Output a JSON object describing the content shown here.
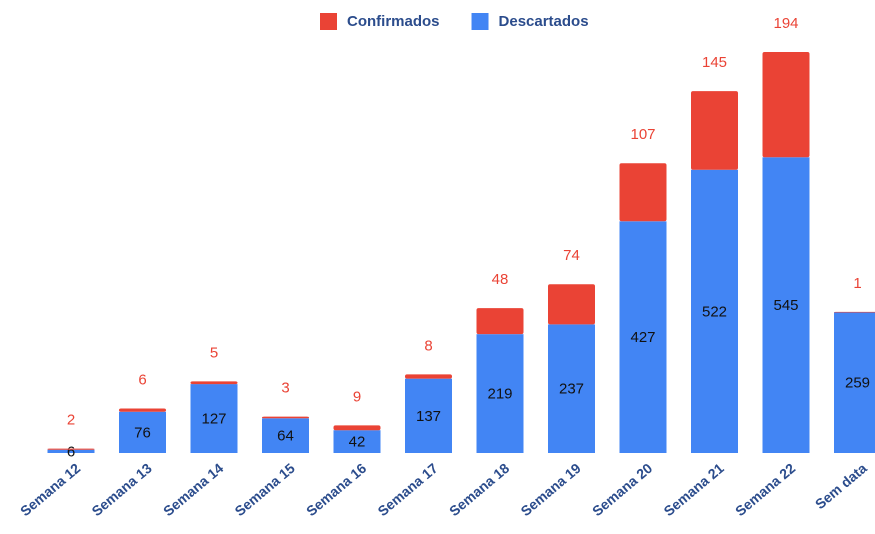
{
  "chart_data": {
    "type": "stacked-bar",
    "categories": [
      "Semana 12",
      "Semana 13",
      "Semana 14",
      "Semana 15",
      "Semana 16",
      "Semana 17",
      "Semana 18",
      "Semana 19",
      "Semana 20",
      "Semana 21",
      "Semana 22",
      "Sem data"
    ],
    "series": [
      {
        "name": "Descartados",
        "color": "#4285f4",
        "values": [
          6,
          76,
          127,
          64,
          42,
          137,
          219,
          237,
          427,
          522,
          545,
          259
        ]
      },
      {
        "name": "Confirmados",
        "color": "#ea4335",
        "values": [
          2,
          6,
          5,
          3,
          9,
          8,
          48,
          74,
          107,
          145,
          194,
          1
        ]
      }
    ],
    "legend": "top"
  }
}
